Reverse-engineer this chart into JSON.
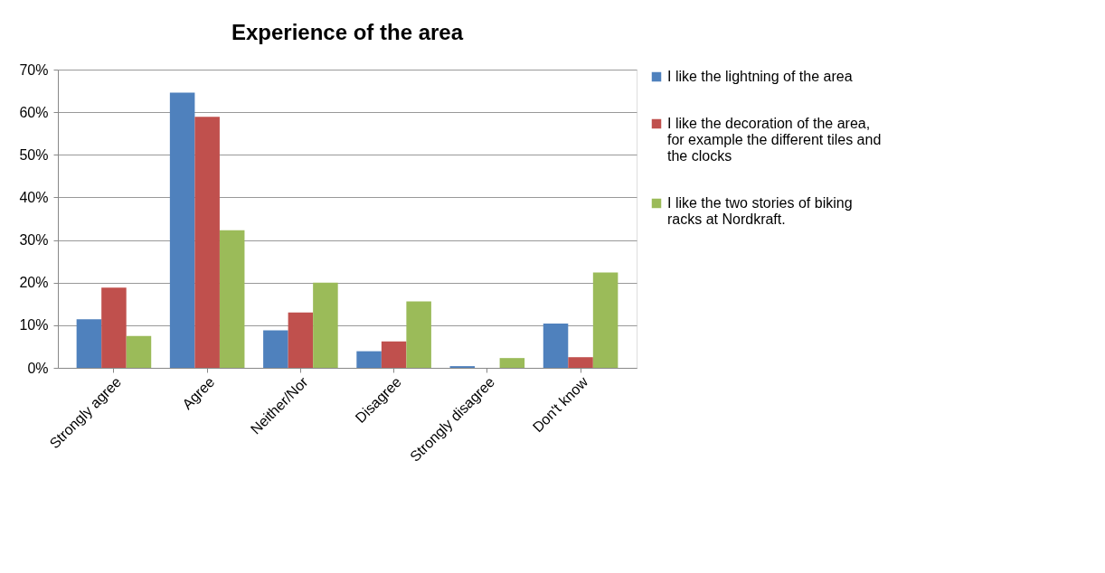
{
  "chart_data": {
    "type": "bar",
    "title": "Experience of the area",
    "categories": [
      "Strongly agree",
      "Agree",
      "Neither/Nor",
      "Disagree",
      "Strongly disagree",
      "Don't know"
    ],
    "series": [
      {
        "name": "I like the lightning of the area",
        "color": "#4f81bd",
        "values": [
          11.4,
          64.6,
          8.8,
          3.9,
          0.4,
          10.4
        ]
      },
      {
        "name": "I like the decoration of the area, for example the different tiles and the clocks",
        "color": "#c0504d",
        "values": [
          18.8,
          58.9,
          13.0,
          6.2,
          0,
          2.5
        ]
      },
      {
        "name": "I like the two stories of biking racks at Nordkraft.",
        "color": "#9bbb59",
        "values": [
          7.5,
          32.3,
          20.0,
          15.6,
          2.3,
          22.4
        ]
      }
    ],
    "ylim": [
      0,
      70
    ],
    "yticks": [
      {
        "value": 0,
        "label": "0%"
      },
      {
        "value": 10,
        "label": "10%"
      },
      {
        "value": 20,
        "label": "20%"
      },
      {
        "value": 30,
        "label": "30%"
      },
      {
        "value": 40,
        "label": "40%"
      },
      {
        "value": 50,
        "label": "50%"
      },
      {
        "value": 60,
        "label": "60%"
      },
      {
        "value": 70,
        "label": "70%"
      }
    ],
    "grid": "y",
    "legend": "right"
  }
}
